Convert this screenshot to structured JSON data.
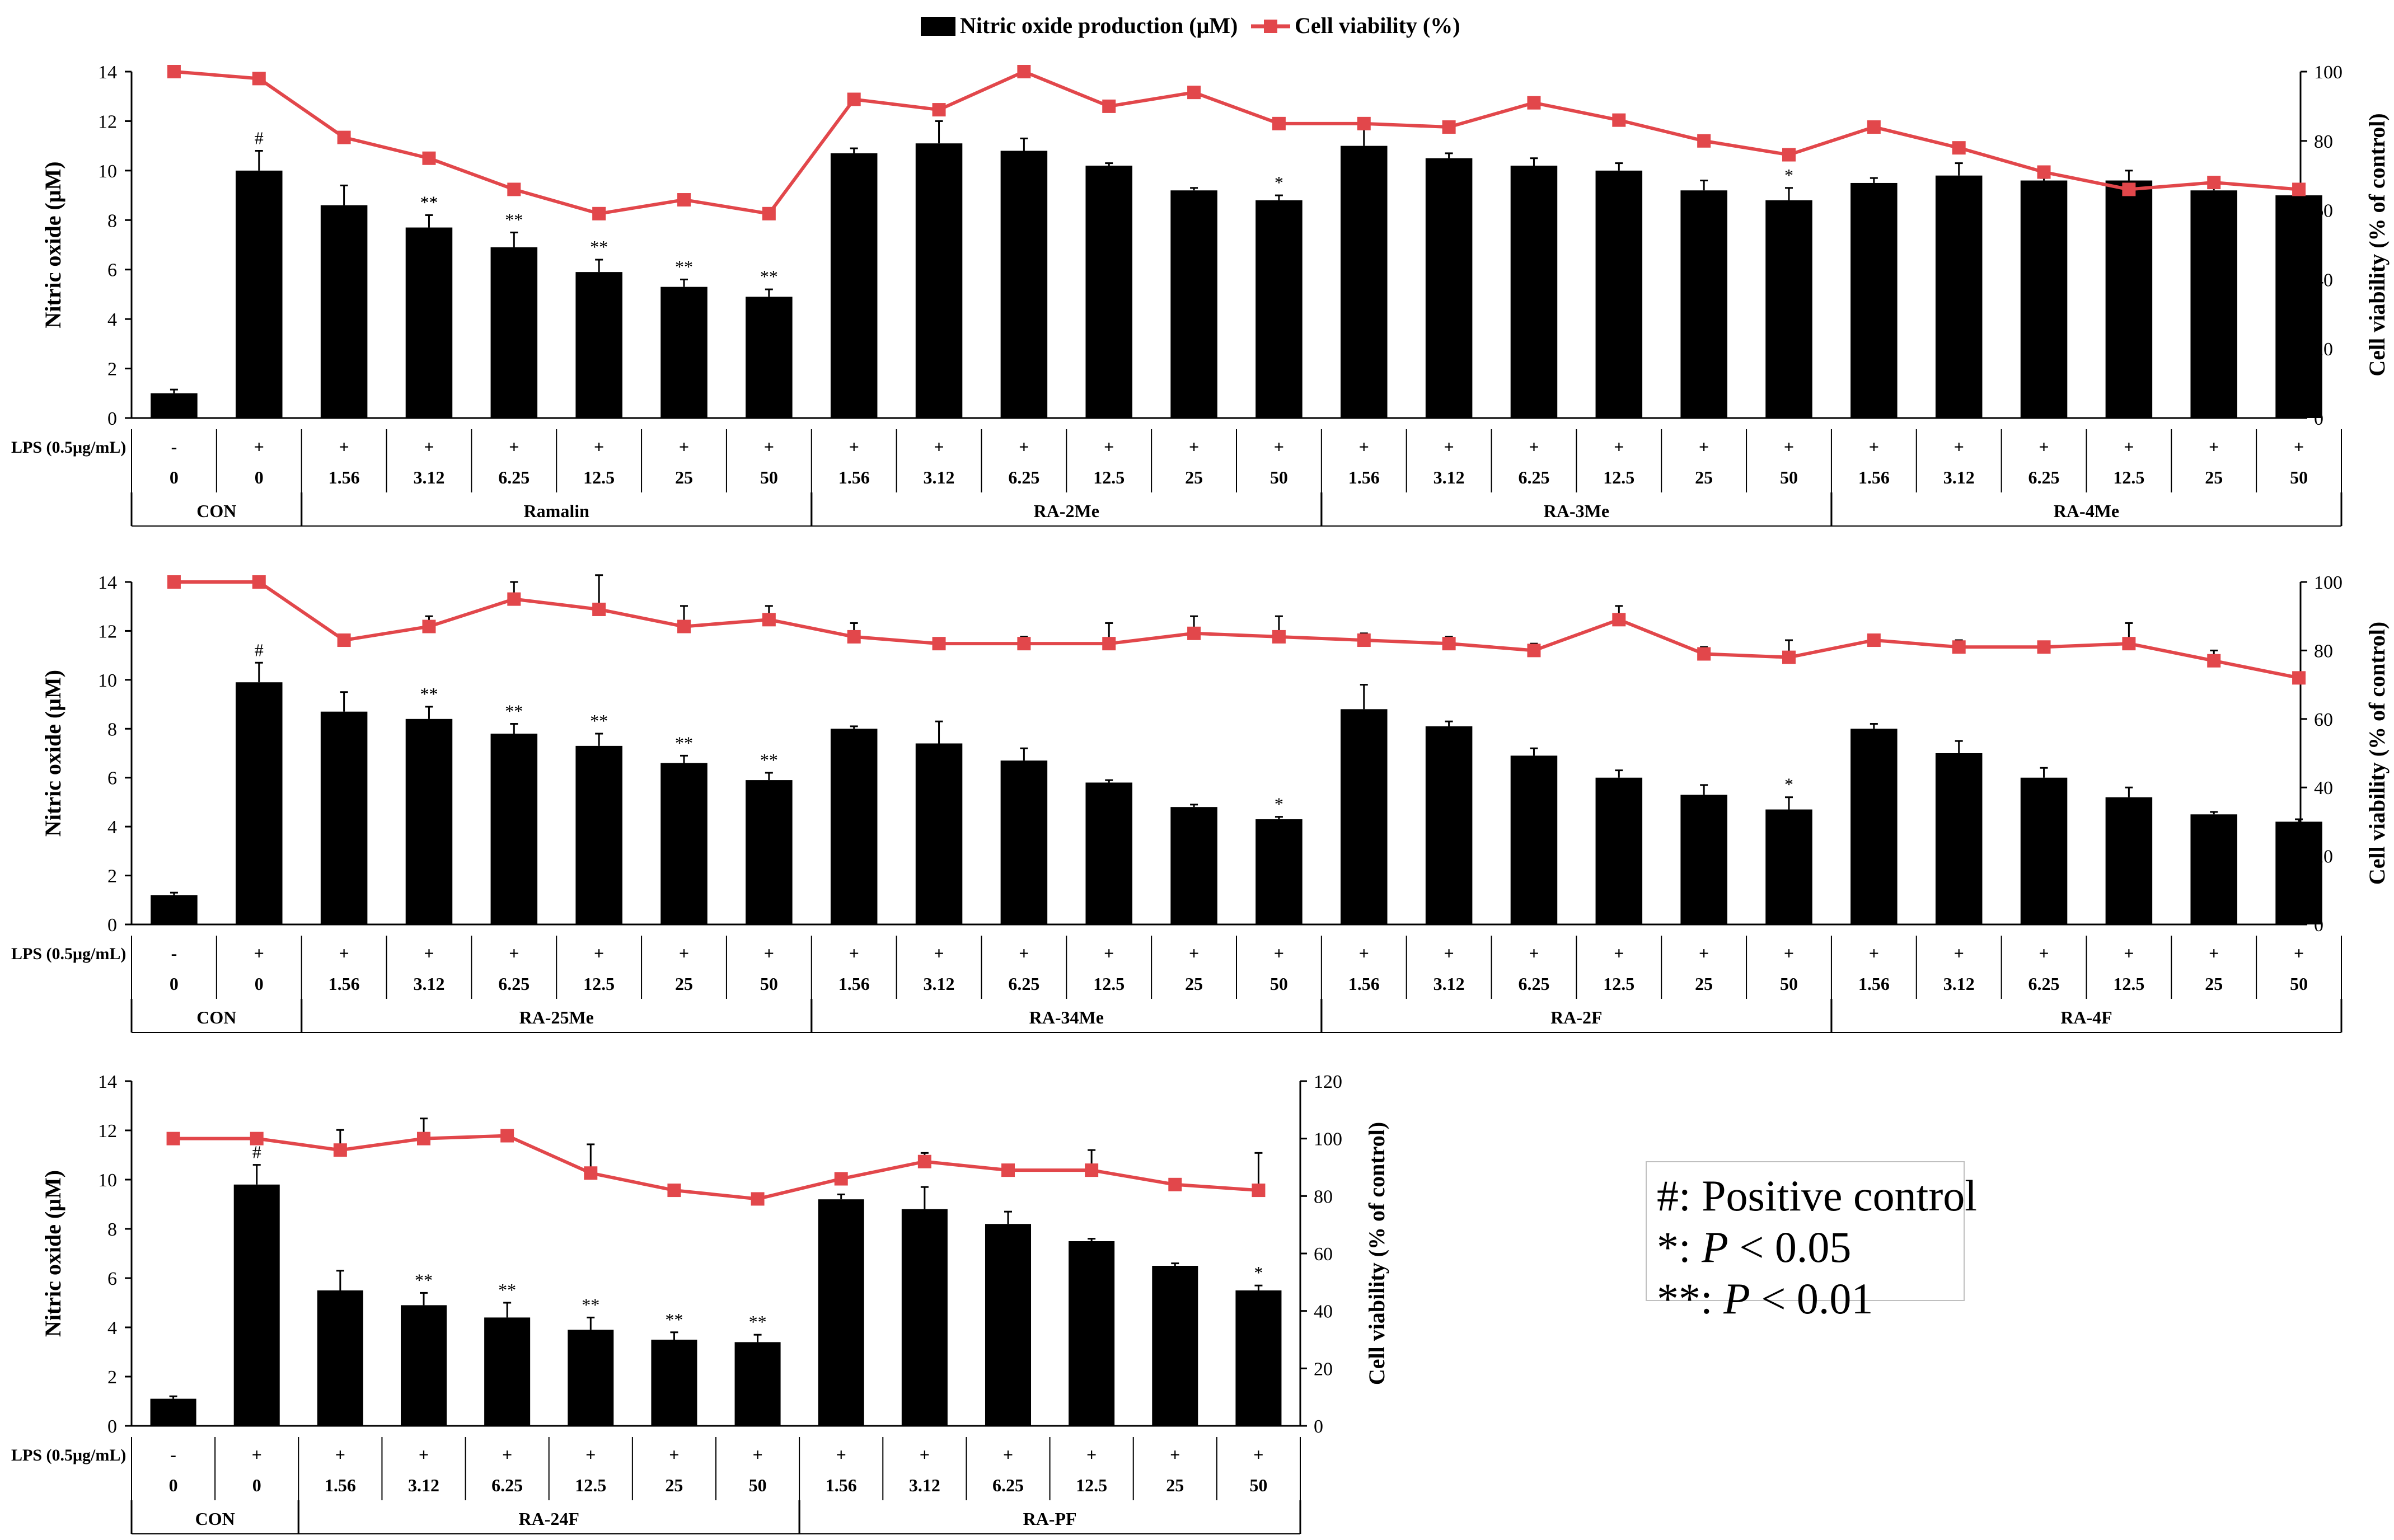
{
  "legend": {
    "items": [
      {
        "label": "Nitric oxide production (μM)",
        "color": "#000000",
        "kind": "bar"
      },
      {
        "label": "Cell viability (%)",
        "color": "#e2474b",
        "kind": "line-square"
      }
    ]
  },
  "row_labels": {
    "lps": "LPS (0.5μg/mL)"
  },
  "annotation": {
    "positive": {
      "symbol": "#",
      "text": ": Positive control"
    },
    "p05": {
      "symbol": "*",
      "text": ": ",
      "p": "P",
      "rest": " < 0.05"
    },
    "p01": {
      "symbol": "**",
      "text": ": ",
      "p": "P",
      "rest": " < 0.01"
    }
  },
  "chart_data": [
    {
      "type": "bar",
      "ylabel": "Nitric oxide (μM)",
      "y2label": "Cell viability (% of control)",
      "ylim": [
        0,
        14
      ],
      "yticks": [
        0,
        2,
        4,
        6,
        8,
        10,
        12,
        14
      ],
      "y2lim": [
        0,
        100
      ],
      "y2ticks": [
        0,
        20,
        40,
        60,
        80,
        100
      ],
      "lps": [
        "-",
        "+",
        "+",
        "+",
        "+",
        "+",
        "+",
        "+",
        "+",
        "+",
        "+",
        "+",
        "+",
        "+",
        "+",
        "+",
        "+",
        "+",
        "+",
        "+",
        "+",
        "+",
        "+",
        "+",
        "+",
        "+"
      ],
      "concentrations": [
        "0",
        "0",
        "1.56",
        "3.12",
        "6.25",
        "12.5",
        "25",
        "50",
        "1.56",
        "3.12",
        "6.25",
        "12.5",
        "25",
        "50",
        "1.56",
        "3.12",
        "6.25",
        "12.5",
        "25",
        "50",
        "1.56",
        "3.12",
        "6.25",
        "12.5",
        "25",
        "50"
      ],
      "groups": [
        {
          "label": "CON",
          "n": 2
        },
        {
          "label": "Ramalin",
          "n": 6
        },
        {
          "label": "RA-2Me",
          "n": 6
        },
        {
          "label": "RA-3Me",
          "n": 6
        },
        {
          "label": "RA-4Me",
          "n": 6
        }
      ],
      "series": [
        {
          "name": "Nitric oxide production (μM)",
          "kind": "bar",
          "values": [
            1.0,
            10.0,
            8.6,
            7.7,
            6.9,
            5.9,
            5.3,
            4.9,
            10.7,
            11.1,
            10.8,
            10.2,
            9.2,
            8.8,
            11.0,
            10.5,
            10.2,
            10.0,
            9.2,
            8.8,
            9.5,
            9.8,
            9.6,
            9.6,
            9.2,
            9.0
          ],
          "errors": [
            0.15,
            0.8,
            0.8,
            0.5,
            0.6,
            0.5,
            0.3,
            0.3,
            0.2,
            0.9,
            0.5,
            0.1,
            0.1,
            0.2,
            0.7,
            0.2,
            0.3,
            0.3,
            0.4,
            0.5,
            0.2,
            0.5,
            0.1,
            0.4,
            0.1,
            0.1
          ],
          "significance": [
            "",
            "#",
            "",
            "**",
            "**",
            "**",
            "**",
            "**",
            "",
            "",
            "",
            "",
            "",
            "*",
            "",
            "",
            "",
            "",
            "",
            "*",
            "",
            "",
            "",
            "",
            "",
            ""
          ]
        },
        {
          "name": "Cell viability (%)",
          "kind": "line",
          "axis": "right",
          "values": [
            100,
            98,
            81,
            75,
            66,
            59,
            63,
            59,
            92,
            89,
            100,
            90,
            94,
            85,
            85,
            84,
            91,
            86,
            80,
            76,
            84,
            78,
            71,
            66,
            68,
            66
          ],
          "errors": [
            0,
            0,
            0,
            0,
            0,
            0,
            0,
            0,
            0,
            0,
            0,
            0,
            0,
            0,
            0,
            0,
            0,
            0,
            0,
            0,
            0,
            0,
            0,
            0,
            0,
            0
          ]
        }
      ]
    },
    {
      "type": "bar",
      "ylabel": "Nitric oxide (μM)",
      "y2label": "Cell viability (% of control)",
      "ylim": [
        0,
        14
      ],
      "yticks": [
        0,
        2,
        4,
        6,
        8,
        10,
        12,
        14
      ],
      "y2lim": [
        0,
        100
      ],
      "y2ticks": [
        0,
        20,
        40,
        60,
        80,
        100
      ],
      "lps": [
        "-",
        "+",
        "+",
        "+",
        "+",
        "+",
        "+",
        "+",
        "+",
        "+",
        "+",
        "+",
        "+",
        "+",
        "+",
        "+",
        "+",
        "+",
        "+",
        "+",
        "+",
        "+",
        "+",
        "+",
        "+",
        "+"
      ],
      "concentrations": [
        "0",
        "0",
        "1.56",
        "3.12",
        "6.25",
        "12.5",
        "25",
        "50",
        "1.56",
        "3.12",
        "6.25",
        "12.5",
        "25",
        "50",
        "1.56",
        "3.12",
        "6.25",
        "12.5",
        "25",
        "50",
        "1.56",
        "3.12",
        "6.25",
        "12.5",
        "25",
        "50"
      ],
      "groups": [
        {
          "label": "CON",
          "n": 2
        },
        {
          "label": "RA-25Me",
          "n": 6
        },
        {
          "label": "RA-34Me",
          "n": 6
        },
        {
          "label": "RA-2F",
          "n": 6
        },
        {
          "label": "RA-4F",
          "n": 6
        }
      ],
      "series": [
        {
          "name": "Nitric oxide production (μM)",
          "kind": "bar",
          "values": [
            1.2,
            9.9,
            8.7,
            8.4,
            7.8,
            7.3,
            6.6,
            5.9,
            8.0,
            7.4,
            6.7,
            5.8,
            4.8,
            4.3,
            8.8,
            8.1,
            6.9,
            6.0,
            5.3,
            4.7,
            8.0,
            7.0,
            6.0,
            5.2,
            4.5,
            4.2
          ],
          "errors": [
            0.1,
            0.8,
            0.8,
            0.5,
            0.4,
            0.5,
            0.3,
            0.3,
            0.1,
            0.9,
            0.5,
            0.1,
            0.1,
            0.1,
            1.0,
            0.2,
            0.3,
            0.3,
            0.4,
            0.5,
            0.2,
            0.5,
            0.4,
            0.4,
            0.1,
            0.1
          ],
          "significance": [
            "",
            "#",
            "",
            "**",
            "**",
            "**",
            "**",
            "**",
            "",
            "",
            "",
            "",
            "",
            "*",
            "",
            "",
            "",
            "",
            "",
            "*",
            "",
            "",
            "",
            "",
            "",
            ""
          ]
        },
        {
          "name": "Cell viability (%)",
          "kind": "line",
          "axis": "right",
          "values": [
            100,
            100,
            83,
            87,
            95,
            92,
            87,
            89,
            84,
            82,
            82,
            82,
            85,
            84,
            83,
            82,
            80,
            89,
            79,
            78,
            83,
            81,
            81,
            82,
            77,
            72
          ],
          "errors": [
            0,
            0,
            0,
            3,
            5,
            10,
            6,
            4,
            4,
            0,
            2,
            6,
            5,
            6,
            2,
            2,
            2,
            4,
            2,
            5,
            0,
            2,
            0,
            6,
            3,
            0
          ]
        }
      ]
    },
    {
      "type": "bar",
      "ylabel": "Nitric oxide (μM)",
      "y2label": "Cell viability (% of control)",
      "ylim": [
        0,
        14
      ],
      "yticks": [
        0,
        2,
        4,
        6,
        8,
        10,
        12,
        14
      ],
      "y2lim": [
        0,
        120
      ],
      "y2ticks": [
        0,
        20,
        40,
        60,
        80,
        100,
        120
      ],
      "lps": [
        "-",
        "+",
        "+",
        "+",
        "+",
        "+",
        "+",
        "+",
        "+",
        "+",
        "+",
        "+",
        "+",
        "+"
      ],
      "concentrations": [
        "0",
        "0",
        "1.56",
        "3.12",
        "6.25",
        "12.5",
        "25",
        "50",
        "1.56",
        "3.12",
        "6.25",
        "12.5",
        "25",
        "50"
      ],
      "groups": [
        {
          "label": "CON",
          "n": 2
        },
        {
          "label": "RA-24F",
          "n": 6
        },
        {
          "label": "RA-PF",
          "n": 6
        }
      ],
      "series": [
        {
          "name": "Nitric oxide production (μM)",
          "kind": "bar",
          "values": [
            1.1,
            9.8,
            5.5,
            4.9,
            4.4,
            3.9,
            3.5,
            3.4,
            9.2,
            8.8,
            8.2,
            7.5,
            6.5,
            5.5
          ],
          "errors": [
            0.1,
            0.8,
            0.8,
            0.5,
            0.6,
            0.5,
            0.3,
            0.3,
            0.2,
            0.9,
            0.5,
            0.1,
            0.1,
            0.2
          ],
          "significance": [
            "",
            "#",
            "",
            "**",
            "**",
            "**",
            "**",
            "**",
            "",
            "",
            "",
            "",
            "",
            "*"
          ]
        },
        {
          "name": "Cell viability (%)",
          "kind": "line",
          "axis": "right",
          "values": [
            100,
            100,
            96,
            100,
            101,
            88,
            82,
            79,
            86,
            92,
            89,
            89,
            84,
            82
          ],
          "errors": [
            0,
            0,
            7,
            7,
            0,
            10,
            0,
            0,
            0,
            3,
            0,
            7,
            0,
            13
          ]
        }
      ]
    }
  ]
}
